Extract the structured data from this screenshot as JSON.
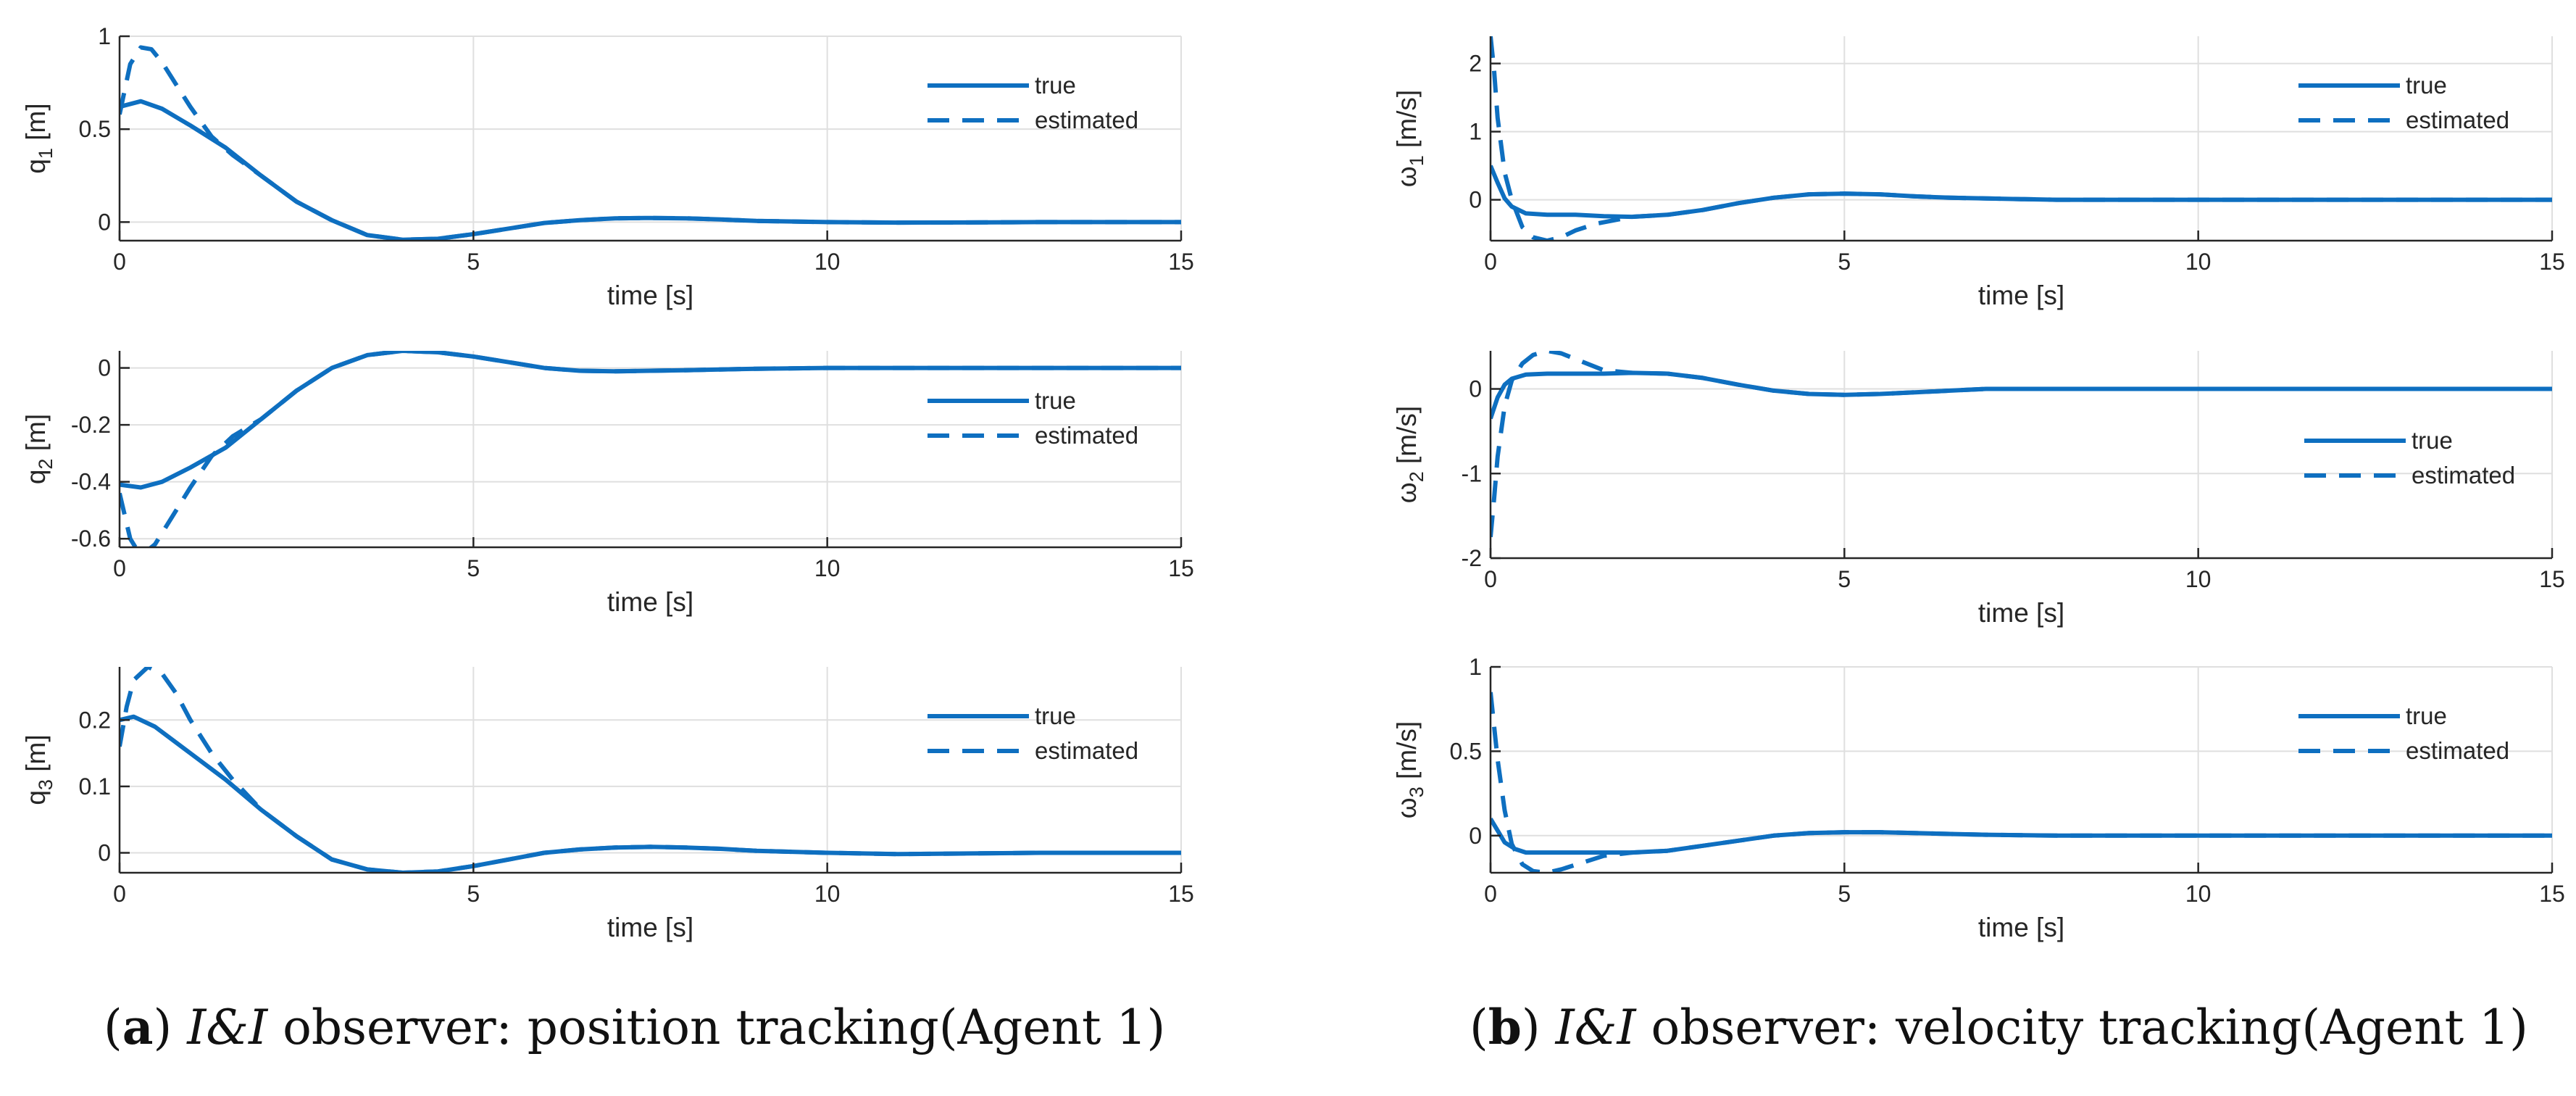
{
  "colors": {
    "line": "#0e6fc0",
    "grid": "#dfdfdf",
    "axis": "#262626"
  },
  "captions": {
    "a": {
      "letter": "a",
      "observer": "I&I",
      "text": " observer: position tracking(Agent 1)"
    },
    "b": {
      "letter": "b",
      "observer": "I&I",
      "text": " observer: velocity tracking(Agent 1)"
    }
  },
  "chart_data": [
    {
      "id": "q1",
      "type": "line",
      "ylabel": {
        "sym": "q",
        "sub": "1",
        "unit": " [m]"
      },
      "xlabel": "time [s]",
      "xlim": [
        0,
        15
      ],
      "ylim": [
        -0.1,
        1.0
      ],
      "xticks": [
        0,
        5,
        10,
        15
      ],
      "yticks": [
        0,
        0.5,
        1
      ],
      "ytick_labels": [
        "0",
        "0.5",
        "1"
      ],
      "grid": true,
      "legend": {
        "position": "top-right",
        "entries": [
          "true",
          "estimated"
        ]
      },
      "series": [
        {
          "name": "true",
          "style": "solid",
          "x": [
            0,
            0.3,
            0.6,
            1.0,
            1.5,
            2.0,
            2.5,
            3.0,
            3.5,
            4.0,
            4.5,
            5.0,
            5.5,
            6.0,
            6.5,
            7.0,
            7.5,
            8.0,
            8.5,
            9.0,
            10.0,
            11.0,
            12.0,
            13.0,
            14.0,
            15.0
          ],
          "y": [
            0.62,
            0.65,
            0.61,
            0.52,
            0.4,
            0.25,
            0.11,
            0.01,
            -0.07,
            -0.095,
            -0.09,
            -0.065,
            -0.035,
            -0.005,
            0.01,
            0.02,
            0.022,
            0.02,
            0.014,
            0.006,
            0.0,
            -0.003,
            -0.002,
            0.0,
            0.0,
            0.0
          ]
        },
        {
          "name": "estimated",
          "style": "dashed",
          "x": [
            0,
            0.15,
            0.3,
            0.45,
            0.6,
            0.8,
            1.0,
            1.3,
            1.6,
            2.0,
            2.5,
            3.0,
            3.5,
            4.0,
            4.5,
            5.0,
            5.5,
            6.0,
            6.5,
            7.0,
            7.5,
            8.0,
            8.5,
            9.0,
            10.0,
            11.0,
            12.0,
            13.0,
            14.0,
            15.0
          ],
          "y": [
            0.58,
            0.85,
            0.94,
            0.93,
            0.86,
            0.74,
            0.62,
            0.46,
            0.36,
            0.25,
            0.11,
            0.01,
            -0.07,
            -0.095,
            -0.09,
            -0.065,
            -0.035,
            -0.005,
            0.01,
            0.02,
            0.022,
            0.02,
            0.014,
            0.006,
            0.0,
            -0.003,
            -0.002,
            0.0,
            0.0,
            0.0
          ]
        }
      ]
    },
    {
      "id": "q2",
      "type": "line",
      "ylabel": {
        "sym": "q",
        "sub": "2",
        "unit": " [m]"
      },
      "xlabel": "time [s]",
      "xlim": [
        0,
        15
      ],
      "ylim": [
        -0.63,
        0.06
      ],
      "xticks": [
        0,
        5,
        10,
        15
      ],
      "yticks": [
        -0.6,
        -0.4,
        -0.2,
        0
      ],
      "ytick_labels": [
        "-0.6",
        "-0.4",
        "-0.2",
        "0"
      ],
      "grid": true,
      "legend": {
        "position": "right",
        "entries": [
          "true",
          "estimated"
        ]
      },
      "series": [
        {
          "name": "true",
          "style": "solid",
          "x": [
            0,
            0.3,
            0.6,
            1.0,
            1.5,
            2.0,
            2.5,
            3.0,
            3.5,
            4.0,
            4.5,
            5.0,
            5.5,
            6.0,
            6.5,
            7.0,
            7.5,
            8.0,
            9.0,
            10.0,
            11.0,
            12.0,
            13.0,
            14.0,
            15.0
          ],
          "y": [
            -0.41,
            -0.42,
            -0.4,
            -0.35,
            -0.28,
            -0.18,
            -0.08,
            0.0,
            0.045,
            0.06,
            0.055,
            0.04,
            0.02,
            0.0,
            -0.01,
            -0.012,
            -0.01,
            -0.008,
            -0.003,
            0.0,
            0.0,
            0.0,
            0.0,
            0.0,
            0.0
          ]
        },
        {
          "name": "estimated",
          "style": "dashed",
          "x": [
            0,
            0.15,
            0.3,
            0.5,
            0.7,
            1.0,
            1.3,
            1.6,
            2.0,
            2.5,
            3.0,
            3.5,
            4.0,
            4.5,
            5.0,
            5.5,
            6.0,
            6.5,
            7.0,
            7.5,
            8.0,
            9.0,
            10.0,
            11.0,
            12.0,
            13.0,
            14.0,
            15.0
          ],
          "y": [
            -0.44,
            -0.6,
            -0.66,
            -0.62,
            -0.54,
            -0.42,
            -0.31,
            -0.24,
            -0.18,
            -0.08,
            0.0,
            0.045,
            0.06,
            0.055,
            0.04,
            0.02,
            0.0,
            -0.01,
            -0.012,
            -0.01,
            -0.008,
            -0.003,
            0.0,
            0.0,
            0.0,
            0.0,
            0.0,
            0.0
          ]
        }
      ]
    },
    {
      "id": "q3",
      "type": "line",
      "ylabel": {
        "sym": "q",
        "sub": "3",
        "unit": " [m]"
      },
      "xlabel": "time [s]",
      "xlim": [
        0,
        15
      ],
      "ylim": [
        -0.03,
        0.28
      ],
      "xticks": [
        0,
        5,
        10,
        15
      ],
      "yticks": [
        0,
        0.1,
        0.2
      ],
      "ytick_labels": [
        "0",
        "0.1",
        "0.2"
      ],
      "grid": true,
      "legend": {
        "position": "top-right",
        "entries": [
          "true",
          "estimated"
        ]
      },
      "series": [
        {
          "name": "true",
          "style": "solid",
          "x": [
            0,
            0.2,
            0.5,
            1.0,
            1.5,
            2.0,
            2.5,
            3.0,
            3.5,
            4.0,
            4.5,
            5.0,
            5.5,
            6.0,
            6.5,
            7.0,
            7.5,
            8.0,
            8.5,
            9.0,
            10.0,
            11.0,
            12.0,
            13.0,
            14.0,
            15.0
          ],
          "y": [
            0.2,
            0.205,
            0.19,
            0.15,
            0.11,
            0.065,
            0.025,
            -0.01,
            -0.025,
            -0.03,
            -0.028,
            -0.02,
            -0.01,
            0.0,
            0.005,
            0.008,
            0.009,
            0.008,
            0.006,
            0.003,
            0.0,
            -0.002,
            -0.001,
            0.0,
            0.0,
            0.0
          ]
        },
        {
          "name": "estimated",
          "style": "dashed",
          "x": [
            0,
            0.1,
            0.2,
            0.4,
            0.6,
            0.8,
            1.0,
            1.3,
            1.6,
            2.0,
            2.5,
            3.0,
            3.5,
            4.0,
            4.5,
            5.0,
            5.5,
            6.0,
            6.5,
            7.0,
            7.5,
            8.0,
            8.5,
            9.0,
            10.0,
            11.0,
            12.0,
            13.0,
            14.0,
            15.0
          ],
          "y": [
            0.16,
            0.22,
            0.26,
            0.28,
            0.27,
            0.24,
            0.2,
            0.15,
            0.11,
            0.065,
            0.025,
            -0.01,
            -0.025,
            -0.03,
            -0.028,
            -0.02,
            -0.01,
            0.0,
            0.005,
            0.008,
            0.009,
            0.008,
            0.006,
            0.003,
            0.0,
            -0.002,
            -0.001,
            0.0,
            0.0,
            0.0
          ]
        }
      ]
    },
    {
      "id": "w1",
      "type": "line",
      "ylabel": {
        "sym": "ω",
        "sub": "1",
        "unit": " [m/s]"
      },
      "xlabel": "time [s]",
      "xlim": [
        0,
        15
      ],
      "ylim": [
        -0.6,
        2.4
      ],
      "xticks": [
        0,
        5,
        10,
        15
      ],
      "yticks": [
        0,
        1,
        2
      ],
      "ytick_labels": [
        "0",
        "1",
        "2"
      ],
      "grid": true,
      "legend": {
        "position": "top-right",
        "entries": [
          "true",
          "estimated"
        ]
      },
      "series": [
        {
          "name": "true",
          "style": "solid",
          "x": [
            0,
            0.1,
            0.2,
            0.3,
            0.5,
            0.8,
            1.2,
            1.6,
            2.0,
            2.5,
            3.0,
            3.5,
            4.0,
            4.5,
            5.0,
            5.5,
            6.0,
            6.5,
            7.0,
            7.5,
            8.0,
            9.0,
            10.0,
            11.0,
            12.0,
            13.0,
            14.0,
            15.0
          ],
          "y": [
            0.5,
            0.25,
            0.02,
            -0.1,
            -0.2,
            -0.22,
            -0.22,
            -0.24,
            -0.25,
            -0.22,
            -0.15,
            -0.05,
            0.03,
            0.08,
            0.09,
            0.08,
            0.05,
            0.03,
            0.02,
            0.01,
            0.0,
            0.0,
            0.0,
            0.0,
            0.0,
            0.0,
            0.0,
            0.0
          ]
        },
        {
          "name": "estimated",
          "style": "dashed",
          "x": [
            0,
            0.05,
            0.1,
            0.2,
            0.3,
            0.45,
            0.6,
            0.8,
            1.0,
            1.2,
            1.5,
            2.0,
            2.5,
            3.0,
            3.5,
            4.0,
            4.5,
            5.0,
            5.5,
            6.0,
            6.5,
            7.0,
            7.5,
            8.0,
            9.0,
            10.0,
            11.0,
            12.0,
            13.0,
            14.0,
            15.0
          ],
          "y": [
            2.4,
            1.9,
            1.2,
            0.4,
            0.0,
            -0.4,
            -0.55,
            -0.6,
            -0.55,
            -0.45,
            -0.35,
            -0.25,
            -0.22,
            -0.15,
            -0.05,
            0.03,
            0.08,
            0.09,
            0.08,
            0.05,
            0.03,
            0.02,
            0.01,
            0.0,
            0.0,
            0.0,
            0.0,
            0.0,
            0.0,
            0.0,
            0.0
          ]
        }
      ]
    },
    {
      "id": "w2",
      "type": "line",
      "ylabel": {
        "sym": "ω",
        "sub": "2",
        "unit": " [m/s]"
      },
      "xlabel": "time [s]",
      "xlim": [
        0,
        15
      ],
      "ylim": [
        -2.0,
        0.45
      ],
      "xticks": [
        0,
        5,
        10,
        15
      ],
      "yticks": [
        -2,
        -1,
        0
      ],
      "ytick_labels": [
        "-2",
        "-1",
        "0"
      ],
      "grid": true,
      "legend": {
        "position": "right",
        "entries": [
          "true",
          "estimated"
        ]
      },
      "series": [
        {
          "name": "true",
          "style": "solid",
          "x": [
            0,
            0.1,
            0.2,
            0.3,
            0.5,
            0.8,
            1.2,
            1.6,
            2.0,
            2.5,
            3.0,
            3.5,
            4.0,
            4.5,
            5.0,
            5.5,
            6.0,
            6.5,
            7.0,
            8.0,
            9.0,
            10.0,
            11.0,
            12.0,
            13.0,
            14.0,
            15.0
          ],
          "y": [
            -0.35,
            -0.1,
            0.05,
            0.12,
            0.17,
            0.18,
            0.18,
            0.18,
            0.19,
            0.18,
            0.13,
            0.05,
            -0.02,
            -0.06,
            -0.07,
            -0.06,
            -0.04,
            -0.02,
            0.0,
            0.0,
            0.0,
            0.0,
            0.0,
            0.0,
            0.0,
            0.0,
            0.0
          ]
        },
        {
          "name": "estimated",
          "style": "dashed",
          "x": [
            0,
            0.05,
            0.1,
            0.2,
            0.3,
            0.45,
            0.6,
            0.8,
            1.0,
            1.3,
            1.6,
            2.0,
            2.5,
            3.0,
            3.5,
            4.0,
            4.5,
            5.0,
            5.5,
            6.0,
            6.5,
            7.0,
            8.0,
            9.0,
            10.0,
            11.0,
            12.0,
            13.0,
            14.0,
            15.0
          ],
          "y": [
            -1.75,
            -1.3,
            -0.8,
            -0.2,
            0.1,
            0.3,
            0.4,
            0.45,
            0.42,
            0.32,
            0.22,
            0.19,
            0.18,
            0.13,
            0.05,
            -0.02,
            -0.06,
            -0.07,
            -0.06,
            -0.04,
            -0.02,
            0.0,
            0.0,
            0.0,
            0.0,
            0.0,
            0.0,
            0.0,
            0.0,
            0.0
          ]
        }
      ]
    },
    {
      "id": "w3",
      "type": "line",
      "ylabel": {
        "sym": "ω",
        "sub": "3",
        "unit": " [m/s]"
      },
      "xlabel": "time [s]",
      "xlim": [
        0,
        15
      ],
      "ylim": [
        -0.22,
        1.0
      ],
      "xticks": [
        0,
        5,
        10,
        15
      ],
      "yticks": [
        0,
        0.5,
        1
      ],
      "ytick_labels": [
        "0",
        "0.5",
        "1"
      ],
      "grid": true,
      "legend": {
        "position": "top-right",
        "entries": [
          "true",
          "estimated"
        ]
      },
      "series": [
        {
          "name": "true",
          "style": "solid",
          "x": [
            0,
            0.1,
            0.2,
            0.35,
            0.5,
            0.8,
            1.2,
            1.6,
            2.0,
            2.5,
            3.0,
            3.5,
            4.0,
            4.5,
            5.0,
            5.5,
            6.0,
            6.5,
            7.0,
            8.0,
            9.0,
            10.0,
            11.0,
            12.0,
            13.0,
            14.0,
            15.0
          ],
          "y": [
            0.1,
            0.03,
            -0.04,
            -0.08,
            -0.1,
            -0.1,
            -0.1,
            -0.1,
            -0.1,
            -0.09,
            -0.06,
            -0.03,
            0.0,
            0.015,
            0.02,
            0.02,
            0.015,
            0.01,
            0.005,
            0.0,
            0.0,
            0.0,
            0.0,
            0.0,
            0.0,
            0.0,
            0.0
          ]
        },
        {
          "name": "estimated",
          "style": "dashed",
          "x": [
            0,
            0.05,
            0.1,
            0.2,
            0.3,
            0.45,
            0.6,
            0.8,
            1.0,
            1.3,
            1.6,
            2.0,
            2.5,
            3.0,
            3.5,
            4.0,
            4.5,
            5.0,
            5.5,
            6.0,
            6.5,
            7.0,
            8.0,
            9.0,
            10.0,
            11.0,
            12.0,
            13.0,
            14.0,
            15.0
          ],
          "y": [
            0.85,
            0.65,
            0.45,
            0.15,
            -0.05,
            -0.17,
            -0.21,
            -0.22,
            -0.2,
            -0.16,
            -0.12,
            -0.1,
            -0.09,
            -0.06,
            -0.03,
            0.0,
            0.015,
            0.02,
            0.02,
            0.015,
            0.01,
            0.005,
            0.0,
            0.0,
            0.0,
            0.0,
            0.0,
            0.0,
            0.0,
            0.0
          ]
        }
      ]
    }
  ]
}
